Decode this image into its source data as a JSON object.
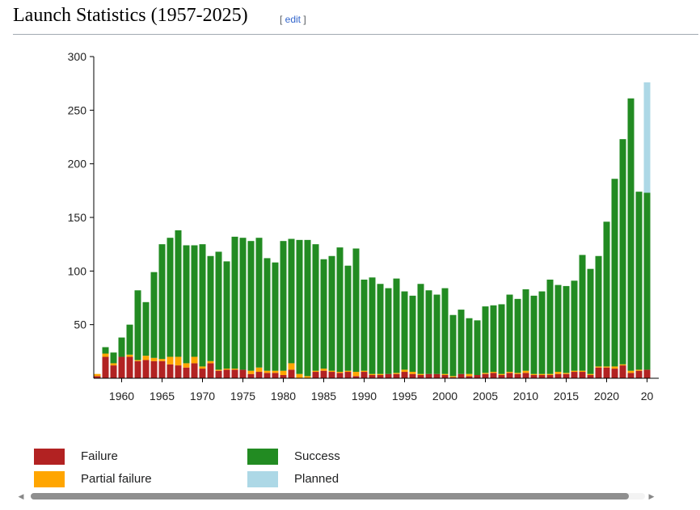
{
  "heading": {
    "title": "Launch Statistics (1957-2025)",
    "edit_open": "[ ",
    "edit_label": "edit",
    "edit_close": " ]"
  },
  "legend": [
    {
      "label": "Failure",
      "color": "#b22222"
    },
    {
      "label": "Partial failure",
      "color": "#ffa500"
    },
    {
      "label": "Success",
      "color": "#228b22"
    },
    {
      "label": "Planned",
      "color": "#add8e6"
    }
  ],
  "scrollbar": {
    "left_arrow": "◀",
    "right_arrow": "▶"
  },
  "chart_data": {
    "type": "bar",
    "stacked": true,
    "title": "",
    "xlabel": "",
    "ylabel": "",
    "ylim": [
      0,
      300
    ],
    "yticks": [
      50,
      100,
      150,
      200,
      250,
      300
    ],
    "xticks": [
      "1960",
      "1965",
      "1970",
      "1975",
      "1980",
      "1985",
      "1990",
      "1995",
      "2000",
      "2005",
      "2010",
      "2015",
      "2020",
      "20"
    ],
    "categories": [
      1957,
      1958,
      1959,
      1960,
      1961,
      1962,
      1963,
      1964,
      1965,
      1966,
      1967,
      1968,
      1969,
      1970,
      1971,
      1972,
      1973,
      1974,
      1975,
      1976,
      1977,
      1978,
      1979,
      1980,
      1981,
      1982,
      1983,
      1984,
      1985,
      1986,
      1987,
      1988,
      1989,
      1990,
      1991,
      1992,
      1993,
      1994,
      1995,
      1996,
      1997,
      1998,
      1999,
      2000,
      2001,
      2002,
      2003,
      2004,
      2005,
      2006,
      2007,
      2008,
      2009,
      2010,
      2011,
      2012,
      2013,
      2014,
      2015,
      2016,
      2017,
      2018,
      2019,
      2020,
      2021,
      2022,
      2023,
      2024,
      2025
    ],
    "series": [
      {
        "name": "Failure",
        "color": "#b22222",
        "values": [
          2,
          20,
          12,
          20,
          20,
          16,
          17,
          16,
          16,
          13,
          12,
          10,
          14,
          9,
          14,
          7,
          8,
          8,
          8,
          4,
          6,
          5,
          5,
          3,
          8,
          0,
          0,
          6,
          7,
          6,
          5,
          6,
          2,
          6,
          3,
          3,
          4,
          4,
          6,
          4,
          3,
          4,
          4,
          3,
          1,
          4,
          2,
          3,
          4,
          5,
          3,
          5,
          4,
          5,
          3,
          3,
          3,
          4,
          4,
          6,
          6,
          3,
          10,
          10,
          9,
          12,
          5,
          7,
          8
        ]
      },
      {
        "name": "Partial failure",
        "color": "#ffa500",
        "values": [
          2,
          3,
          2,
          0,
          2,
          1,
          4,
          3,
          2,
          7,
          8,
          4,
          6,
          2,
          2,
          1,
          1,
          1,
          0,
          3,
          4,
          2,
          2,
          4,
          6,
          4,
          2,
          1,
          2,
          1,
          1,
          1,
          4,
          1,
          1,
          1,
          0,
          1,
          2,
          2,
          1,
          0,
          0,
          1,
          1,
          0,
          2,
          0,
          1,
          1,
          1,
          1,
          1,
          2,
          1,
          1,
          1,
          2,
          1,
          1,
          1,
          1,
          1,
          1,
          2,
          1,
          2,
          1,
          0
        ]
      },
      {
        "name": "Success",
        "color": "#228b22",
        "values": [
          0,
          6,
          10,
          18,
          28,
          65,
          50,
          80,
          107,
          111,
          118,
          110,
          104,
          114,
          98,
          110,
          100,
          123,
          123,
          121,
          121,
          105,
          101,
          121,
          116,
          125,
          127,
          118,
          102,
          107,
          116,
          98,
          115,
          85,
          90,
          84,
          80,
          88,
          73,
          71,
          84,
          78,
          74,
          80,
          57,
          60,
          52,
          51,
          62,
          62,
          65,
          72,
          69,
          76,
          73,
          77,
          88,
          81,
          81,
          84,
          108,
          98,
          103,
          135,
          175,
          210,
          254,
          166,
          165
        ]
      },
      {
        "name": "Planned",
        "color": "#add8e6",
        "values": [
          0,
          0,
          0,
          0,
          0,
          0,
          0,
          0,
          0,
          0,
          0,
          0,
          0,
          0,
          0,
          0,
          0,
          0,
          0,
          0,
          0,
          0,
          0,
          0,
          0,
          0,
          0,
          0,
          0,
          0,
          0,
          0,
          0,
          0,
          0,
          0,
          0,
          0,
          0,
          0,
          0,
          0,
          0,
          0,
          0,
          0,
          0,
          0,
          0,
          0,
          0,
          0,
          0,
          0,
          0,
          0,
          0,
          0,
          0,
          0,
          0,
          0,
          0,
          0,
          0,
          0,
          0,
          0,
          103
        ]
      }
    ]
  }
}
